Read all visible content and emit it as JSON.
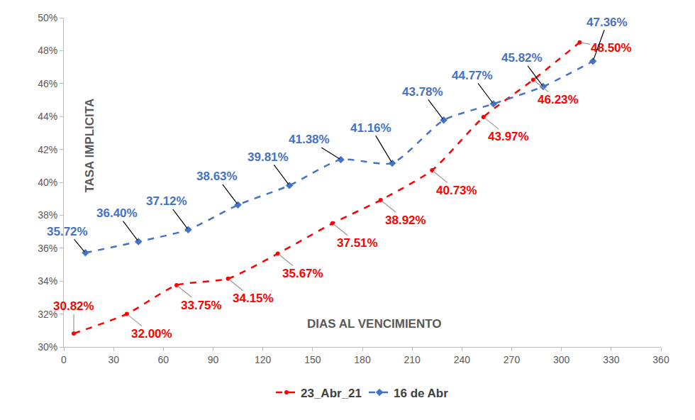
{
  "chart_data": {
    "type": "line",
    "xlabel": "DIAS AL VENCIMIENTO",
    "ylabel": "TASA IMPLICITA",
    "xlim": [
      0,
      360
    ],
    "xticks": [
      0,
      30,
      60,
      90,
      120,
      150,
      180,
      210,
      240,
      270,
      300,
      330,
      360
    ],
    "ylim": [
      30,
      50
    ],
    "yticks": [
      {
        "value": 30,
        "label": "30%"
      },
      {
        "value": 32,
        "label": "32%"
      },
      {
        "value": 34,
        "label": "34%"
      },
      {
        "value": 36,
        "label": "36%"
      },
      {
        "value": 38,
        "label": "38%"
      },
      {
        "value": 40,
        "label": "40%"
      },
      {
        "value": 42,
        "label": "42%"
      },
      {
        "value": 44,
        "label": "44%"
      },
      {
        "value": 46,
        "label": "46%"
      },
      {
        "value": 48,
        "label": "48%"
      },
      {
        "value": 50,
        "label": "50%"
      }
    ],
    "grid": false,
    "legend": "bottom",
    "data_labels": true,
    "series": [
      {
        "name": "23_Abr_21",
        "color": "#ff0000",
        "marker": "circle",
        "line_style": "dashed",
        "x": [
          6,
          38,
          68,
          99,
          129,
          162,
          191,
          222,
          253,
          283,
          311
        ],
        "values": [
          30.82,
          32.0,
          33.75,
          34.15,
          35.67,
          37.51,
          38.92,
          40.73,
          43.97,
          46.23,
          48.5
        ],
        "value_labels": [
          "30.82%",
          "32.00%",
          "33.75%",
          "34.15%",
          "35.67%",
          "37.51%",
          "38.92%",
          "40.73%",
          "43.97%",
          "46.23%",
          "48.50%"
        ]
      },
      {
        "name": "16 de Abr",
        "color": "#4472c4",
        "marker": "diamond",
        "line_style": "dashed",
        "x": [
          13,
          45,
          75,
          105,
          136,
          167,
          198,
          229,
          259,
          289,
          319
        ],
        "values": [
          35.72,
          36.4,
          37.12,
          38.63,
          39.81,
          41.38,
          41.16,
          43.78,
          44.77,
          45.82,
          47.36
        ],
        "value_labels": [
          "35.72%",
          "36.40%",
          "37.12%",
          "38.63%",
          "39.81%",
          "41.38%",
          "41.16%",
          "43.78%",
          "44.77%",
          "45.82%",
          "47.36%"
        ]
      }
    ]
  }
}
